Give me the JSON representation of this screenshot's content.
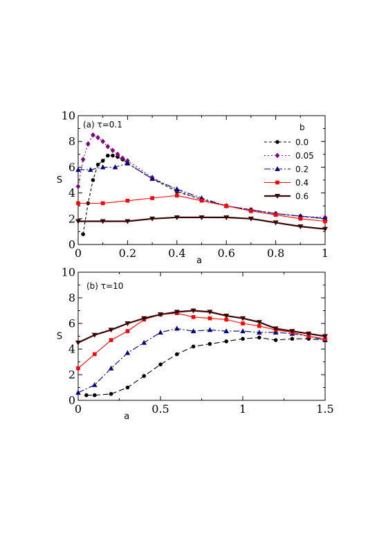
{
  "chart_data": [
    {
      "type": "line",
      "panel_label": "(a) τ=0.1",
      "xlabel": "a",
      "ylabel": "S",
      "xlim": [
        0,
        1
      ],
      "ylim": [
        0,
        10
      ],
      "xticks": [
        "0",
        "0.2",
        "0.4",
        "0.6",
        "0.8",
        "1"
      ],
      "yticks": [
        "0",
        "2",
        "4",
        "6",
        "8",
        "10"
      ],
      "legend_title": "b",
      "legend_placement": "top-right",
      "series": [
        {
          "name": "0.0",
          "color": "#000000",
          "marker": "circle",
          "dash": "4,3",
          "x": [
            0.02,
            0.04,
            0.06,
            0.08,
            0.1,
            0.12,
            0.14,
            0.16,
            0.18,
            0.2,
            0.3,
            0.4,
            0.5,
            0.6,
            0.7,
            0.8,
            0.9,
            1.0
          ],
          "y": [
            0.8,
            3.2,
            5.0,
            6.2,
            6.5,
            6.9,
            6.9,
            6.8,
            6.6,
            6.3,
            5.1,
            4.1,
            3.5,
            3.0,
            2.7,
            2.4,
            2.2,
            2.0
          ]
        },
        {
          "name": "0.05",
          "color": "#800080",
          "marker": "diamond",
          "dash": "2,3",
          "x": [
            0.0,
            0.02,
            0.04,
            0.06,
            0.08,
            0.1,
            0.12,
            0.14,
            0.16,
            0.18,
            0.2,
            0.3,
            0.4,
            0.5,
            0.6,
            0.7,
            0.8,
            0.9,
            1.0
          ],
          "y": [
            4.5,
            6.6,
            7.8,
            8.5,
            8.3,
            8.0,
            7.6,
            7.3,
            7.0,
            6.7,
            6.5,
            5.2,
            4.2,
            3.5,
            3.0,
            2.6,
            2.4,
            2.2,
            2.1
          ]
        },
        {
          "name": "0.2",
          "color": "#000080",
          "marker": "triangle-up",
          "dash": "9,3,2,3",
          "x": [
            0.0,
            0.05,
            0.1,
            0.15,
            0.2,
            0.3,
            0.4,
            0.5,
            0.6,
            0.7,
            0.8,
            0.9,
            1.0
          ],
          "y": [
            5.8,
            5.8,
            6.0,
            6.0,
            6.3,
            5.1,
            4.3,
            3.6,
            3.0,
            2.7,
            2.4,
            2.2,
            2.0
          ]
        },
        {
          "name": "0.4",
          "color": "#ff0000",
          "marker": "square",
          "dash": "",
          "x": [
            0.0,
            0.1,
            0.2,
            0.3,
            0.4,
            0.5,
            0.6,
            0.7,
            0.8,
            0.9,
            1.0
          ],
          "y": [
            3.2,
            3.2,
            3.4,
            3.6,
            3.8,
            3.4,
            3.0,
            2.6,
            2.3,
            2.0,
            1.8
          ]
        },
        {
          "name": "0.6",
          "color": "#3a0000",
          "marker": "triangle-down",
          "dash": "",
          "x": [
            0.0,
            0.1,
            0.2,
            0.3,
            0.4,
            0.5,
            0.6,
            0.7,
            0.8,
            0.9,
            1.0
          ],
          "y": [
            1.8,
            1.8,
            1.8,
            2.0,
            2.1,
            2.1,
            2.1,
            2.0,
            1.7,
            1.4,
            1.2
          ]
        }
      ]
    },
    {
      "type": "line",
      "panel_label": "(b) τ=10",
      "xlabel": "a",
      "ylabel": "S",
      "xlim": [
        0,
        1.5
      ],
      "ylim": [
        0,
        10
      ],
      "xticks": [
        "0",
        "0.5",
        "1",
        "1.5"
      ],
      "yticks": [
        "0",
        "2",
        "4",
        "6",
        "8",
        "10"
      ],
      "series": [
        {
          "name": "0.0",
          "color": "#000000",
          "marker": "circle",
          "dash": "8,4",
          "x": [
            0.05,
            0.1,
            0.2,
            0.3,
            0.4,
            0.5,
            0.6,
            0.7,
            0.8,
            0.9,
            1.0,
            1.1,
            1.2,
            1.3,
            1.4,
            1.5
          ],
          "y": [
            0.4,
            0.4,
            0.5,
            1.0,
            1.9,
            2.8,
            3.6,
            4.2,
            4.4,
            4.6,
            4.8,
            4.9,
            4.7,
            4.8,
            4.8,
            4.7
          ]
        },
        {
          "name": "0.2",
          "color": "#000080",
          "marker": "triangle-up",
          "dash": "9,3,2,3",
          "x": [
            0.0,
            0.1,
            0.2,
            0.3,
            0.4,
            0.5,
            0.6,
            0.7,
            0.8,
            0.9,
            1.0,
            1.1,
            1.2,
            1.3,
            1.4,
            1.5
          ],
          "y": [
            0.6,
            1.2,
            2.5,
            3.7,
            4.5,
            5.3,
            5.6,
            5.4,
            5.5,
            5.4,
            5.4,
            5.3,
            5.3,
            5.2,
            5.0,
            4.7
          ]
        },
        {
          "name": "0.4",
          "color": "#ff0000",
          "marker": "square",
          "dash": "",
          "x": [
            0.0,
            0.1,
            0.2,
            0.3,
            0.4,
            0.5,
            0.6,
            0.7,
            0.8,
            0.9,
            1.0,
            1.1,
            1.2,
            1.3,
            1.4,
            1.5
          ],
          "y": [
            2.5,
            3.6,
            4.7,
            5.4,
            6.3,
            6.7,
            6.8,
            6.5,
            6.4,
            6.3,
            6.0,
            5.8,
            5.5,
            5.3,
            5.0,
            4.8
          ]
        },
        {
          "name": "0.6",
          "color": "#3a0000",
          "marker": "triangle-down",
          "dash": "",
          "x": [
            0.0,
            0.1,
            0.2,
            0.3,
            0.4,
            0.5,
            0.6,
            0.7,
            0.8,
            0.9,
            1.0,
            1.1,
            1.2,
            1.3,
            1.4,
            1.5
          ],
          "y": [
            4.5,
            5.1,
            5.5,
            6.0,
            6.4,
            6.7,
            6.9,
            7.0,
            6.9,
            6.6,
            6.4,
            6.1,
            5.6,
            5.4,
            5.2,
            5.0
          ]
        }
      ]
    }
  ]
}
